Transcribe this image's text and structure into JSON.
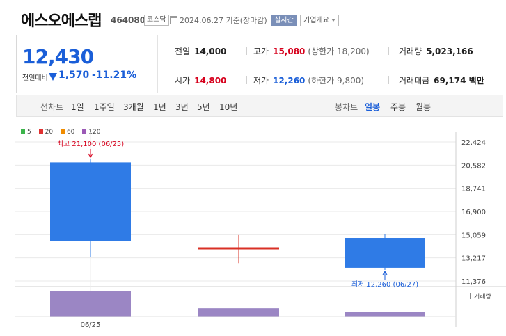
{
  "header": {
    "name": "에스오에스랩",
    "code": "464080",
    "market": "코스닥",
    "date_text": "2024.06.27 기준(장마감)",
    "realtime_label": "실시간",
    "company_info_label": "기업개요"
  },
  "price": {
    "current": "12,430",
    "change_label": "전일대비",
    "change_direction": "down",
    "change_value": "1,570",
    "change_pct": "-11.21%",
    "prev_close_label": "전일",
    "prev_close": "14,000",
    "high_label": "고가",
    "high": "15,080",
    "upper_limit": "(상한가 18,200)",
    "volume_label": "거래량",
    "volume": "5,023,166",
    "open_label": "시가",
    "open": "14,800",
    "low_label": "저가",
    "low": "12,260",
    "lower_limit": "(하한가 9,800)",
    "amount_label": "거래대금",
    "amount": "69,174 백만",
    "colors": {
      "up": "#d6001c",
      "down": "#1a5ed8"
    }
  },
  "period_bar": {
    "line_title": "선차트",
    "line_periods": [
      "1일",
      "1주일",
      "3개월",
      "1년",
      "3년",
      "5년",
      "10년"
    ],
    "candle_title": "봉차트",
    "candle_periods": [
      "일봉",
      "주봉",
      "월봉"
    ],
    "candle_selected": "일봉"
  },
  "legend": [
    {
      "label": "5",
      "color": "#3cb44b"
    },
    {
      "label": "20",
      "color": "#e03131"
    },
    {
      "label": "60",
      "color": "#f08c00"
    },
    {
      "label": "120",
      "color": "#9b59b6"
    }
  ],
  "chart_data": {
    "type": "candlestick",
    "y_ticks": [
      "22,424",
      "20,582",
      "18,741",
      "16,900",
      "15,059",
      "13,217",
      "11,376"
    ],
    "y_tick_values": [
      22424,
      20582,
      18741,
      16900,
      15059,
      13217,
      11376
    ],
    "x_tick_labels": [
      "06/25"
    ],
    "volume_label": "거래량",
    "candles": [
      {
        "open": 14550,
        "high": 21100,
        "low": 13300,
        "close": 20800,
        "color": "#2f7be6",
        "volume": 1.0
      },
      {
        "open": 14000,
        "high": 15030,
        "low": 12800,
        "close": 14000,
        "color": "#d93025",
        "volume": 0.32
      },
      {
        "open": 14800,
        "high": 15080,
        "low": 12260,
        "close": 12430,
        "color": "#2f7be6",
        "volume": 0.18
      }
    ],
    "high_annotation": "최고 21,100 (06/25)",
    "low_annotation": "최저 12,260 (06/27)",
    "volume_color": "#9b86c4"
  }
}
